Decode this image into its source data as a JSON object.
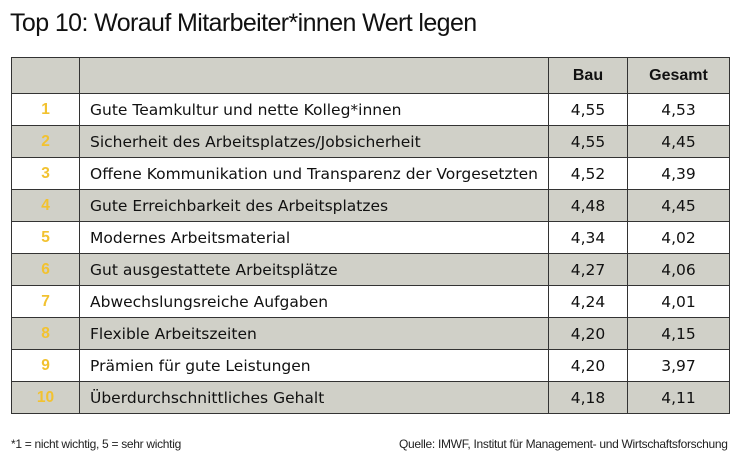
{
  "title": "Top 10: Worauf Mitarbeiter*innen Wert legen",
  "chart_data": {
    "type": "table",
    "columns": [
      "",
      "",
      "Bau",
      "Gesamt"
    ],
    "rows": [
      {
        "rank": "1",
        "label": "Gute Teamkultur und nette Kolleg*innen",
        "bau": "4,55",
        "gesamt": "4,53"
      },
      {
        "rank": "2",
        "label": "Sicherheit des Arbeitsplatzes/Jobsicherheit",
        "bau": "4,55",
        "gesamt": "4,45"
      },
      {
        "rank": "3",
        "label": "Offene Kommunikation und Transparenz der Vorgesetzten",
        "bau": "4,52",
        "gesamt": "4,39"
      },
      {
        "rank": "4",
        "label": "Gute Erreichbarkeit des Arbeitsplatzes",
        "bau": "4,48",
        "gesamt": "4,45"
      },
      {
        "rank": "5",
        "label": "Modernes Arbeitsmaterial",
        "bau": "4,34",
        "gesamt": "4,02"
      },
      {
        "rank": "6",
        "label": "Gut ausgestattete Arbeitsplätze",
        "bau": "4,27",
        "gesamt": "4,06"
      },
      {
        "rank": "7",
        "label": "Abwechslungsreiche Aufgaben",
        "bau": "4,24",
        "gesamt": "4,01"
      },
      {
        "rank": "8",
        "label": "Flexible Arbeitszeiten",
        "bau": "4,20",
        "gesamt": "4,15"
      },
      {
        "rank": "9",
        "label": "Prämien für gute Leistungen",
        "bau": "4,20",
        "gesamt": "3,97"
      },
      {
        "rank": "10",
        "label": "Überdurchschnittliches Gehalt",
        "bau": "4,18",
        "gesamt": "4,11"
      }
    ]
  },
  "footnote": "*1 = nicht wichtig, 5 = sehr wichtig",
  "source": "Quelle: IMWF, Institut für Management- und Wirtschaftsforschung",
  "colors": {
    "rank": "#f2c230",
    "stripe": "#d0d0c8",
    "header": "#d0d0c8"
  }
}
